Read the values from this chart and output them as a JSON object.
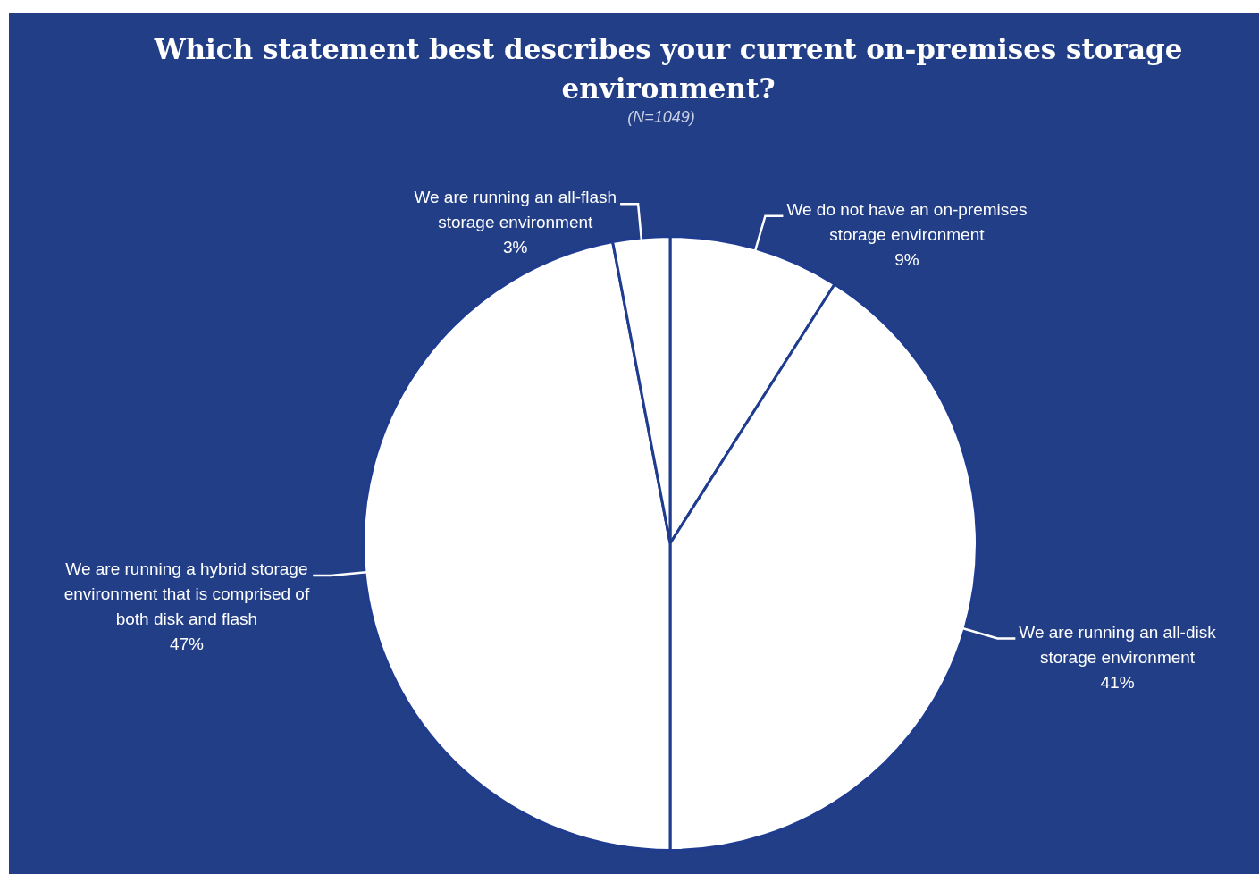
{
  "chart_data": {
    "type": "pie",
    "title": "Which statement best describes your current on-premises storage environment?",
    "subtitle": "(N=1049)",
    "categories": [
      "We do not have an on-premises storage environment",
      "We are running an all-disk storage environment",
      "We are running a hybrid storage environment that is comprised of both disk and flash",
      "We are running an all-flash storage environment"
    ],
    "values": [
      9,
      41,
      47,
      3
    ],
    "value_labels": [
      "9%",
      "41%",
      "47%",
      "3%"
    ],
    "colors": [
      "#ffffff",
      "#ffffff",
      "#ffffff",
      "#ffffff"
    ],
    "legend": false
  }
}
